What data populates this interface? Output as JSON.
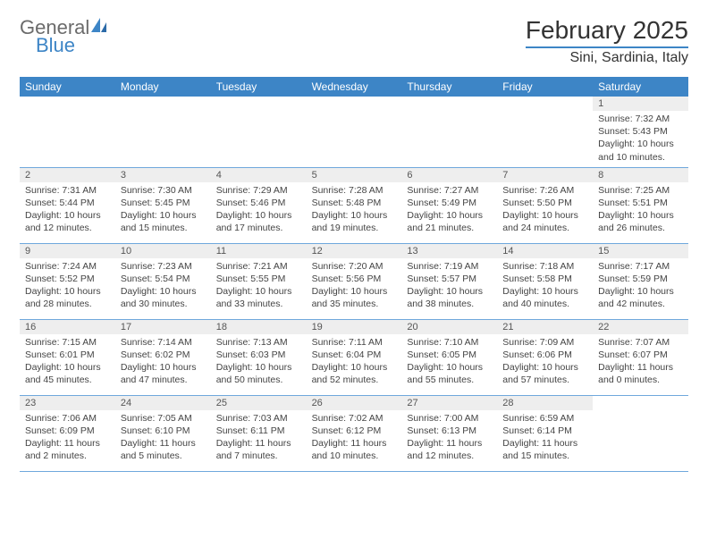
{
  "brand": {
    "word1": "General",
    "word2": "Blue"
  },
  "title": "February 2025",
  "location": "Sini, Sardinia, Italy",
  "colors": {
    "accent": "#3d85c6",
    "accent_light": "#6fa8dc",
    "header_text": "#ffffff",
    "daynum_bg": "#eeeeee",
    "body_text": "#444444",
    "logo_gray": "#6b6b6b"
  },
  "day_names": [
    "Sunday",
    "Monday",
    "Tuesday",
    "Wednesday",
    "Thursday",
    "Friday",
    "Saturday"
  ],
  "weeks": [
    [
      {
        "n": "",
        "sr": "",
        "ss": "",
        "dl": ""
      },
      {
        "n": "",
        "sr": "",
        "ss": "",
        "dl": ""
      },
      {
        "n": "",
        "sr": "",
        "ss": "",
        "dl": ""
      },
      {
        "n": "",
        "sr": "",
        "ss": "",
        "dl": ""
      },
      {
        "n": "",
        "sr": "",
        "ss": "",
        "dl": ""
      },
      {
        "n": "",
        "sr": "",
        "ss": "",
        "dl": ""
      },
      {
        "n": "1",
        "sr": "Sunrise: 7:32 AM",
        "ss": "Sunset: 5:43 PM",
        "dl": "Daylight: 10 hours and 10 minutes."
      }
    ],
    [
      {
        "n": "2",
        "sr": "Sunrise: 7:31 AM",
        "ss": "Sunset: 5:44 PM",
        "dl": "Daylight: 10 hours and 12 minutes."
      },
      {
        "n": "3",
        "sr": "Sunrise: 7:30 AM",
        "ss": "Sunset: 5:45 PM",
        "dl": "Daylight: 10 hours and 15 minutes."
      },
      {
        "n": "4",
        "sr": "Sunrise: 7:29 AM",
        "ss": "Sunset: 5:46 PM",
        "dl": "Daylight: 10 hours and 17 minutes."
      },
      {
        "n": "5",
        "sr": "Sunrise: 7:28 AM",
        "ss": "Sunset: 5:48 PM",
        "dl": "Daylight: 10 hours and 19 minutes."
      },
      {
        "n": "6",
        "sr": "Sunrise: 7:27 AM",
        "ss": "Sunset: 5:49 PM",
        "dl": "Daylight: 10 hours and 21 minutes."
      },
      {
        "n": "7",
        "sr": "Sunrise: 7:26 AM",
        "ss": "Sunset: 5:50 PM",
        "dl": "Daylight: 10 hours and 24 minutes."
      },
      {
        "n": "8",
        "sr": "Sunrise: 7:25 AM",
        "ss": "Sunset: 5:51 PM",
        "dl": "Daylight: 10 hours and 26 minutes."
      }
    ],
    [
      {
        "n": "9",
        "sr": "Sunrise: 7:24 AM",
        "ss": "Sunset: 5:52 PM",
        "dl": "Daylight: 10 hours and 28 minutes."
      },
      {
        "n": "10",
        "sr": "Sunrise: 7:23 AM",
        "ss": "Sunset: 5:54 PM",
        "dl": "Daylight: 10 hours and 30 minutes."
      },
      {
        "n": "11",
        "sr": "Sunrise: 7:21 AM",
        "ss": "Sunset: 5:55 PM",
        "dl": "Daylight: 10 hours and 33 minutes."
      },
      {
        "n": "12",
        "sr": "Sunrise: 7:20 AM",
        "ss": "Sunset: 5:56 PM",
        "dl": "Daylight: 10 hours and 35 minutes."
      },
      {
        "n": "13",
        "sr": "Sunrise: 7:19 AM",
        "ss": "Sunset: 5:57 PM",
        "dl": "Daylight: 10 hours and 38 minutes."
      },
      {
        "n": "14",
        "sr": "Sunrise: 7:18 AM",
        "ss": "Sunset: 5:58 PM",
        "dl": "Daylight: 10 hours and 40 minutes."
      },
      {
        "n": "15",
        "sr": "Sunrise: 7:17 AM",
        "ss": "Sunset: 5:59 PM",
        "dl": "Daylight: 10 hours and 42 minutes."
      }
    ],
    [
      {
        "n": "16",
        "sr": "Sunrise: 7:15 AM",
        "ss": "Sunset: 6:01 PM",
        "dl": "Daylight: 10 hours and 45 minutes."
      },
      {
        "n": "17",
        "sr": "Sunrise: 7:14 AM",
        "ss": "Sunset: 6:02 PM",
        "dl": "Daylight: 10 hours and 47 minutes."
      },
      {
        "n": "18",
        "sr": "Sunrise: 7:13 AM",
        "ss": "Sunset: 6:03 PM",
        "dl": "Daylight: 10 hours and 50 minutes."
      },
      {
        "n": "19",
        "sr": "Sunrise: 7:11 AM",
        "ss": "Sunset: 6:04 PM",
        "dl": "Daylight: 10 hours and 52 minutes."
      },
      {
        "n": "20",
        "sr": "Sunrise: 7:10 AM",
        "ss": "Sunset: 6:05 PM",
        "dl": "Daylight: 10 hours and 55 minutes."
      },
      {
        "n": "21",
        "sr": "Sunrise: 7:09 AM",
        "ss": "Sunset: 6:06 PM",
        "dl": "Daylight: 10 hours and 57 minutes."
      },
      {
        "n": "22",
        "sr": "Sunrise: 7:07 AM",
        "ss": "Sunset: 6:07 PM",
        "dl": "Daylight: 11 hours and 0 minutes."
      }
    ],
    [
      {
        "n": "23",
        "sr": "Sunrise: 7:06 AM",
        "ss": "Sunset: 6:09 PM",
        "dl": "Daylight: 11 hours and 2 minutes."
      },
      {
        "n": "24",
        "sr": "Sunrise: 7:05 AM",
        "ss": "Sunset: 6:10 PM",
        "dl": "Daylight: 11 hours and 5 minutes."
      },
      {
        "n": "25",
        "sr": "Sunrise: 7:03 AM",
        "ss": "Sunset: 6:11 PM",
        "dl": "Daylight: 11 hours and 7 minutes."
      },
      {
        "n": "26",
        "sr": "Sunrise: 7:02 AM",
        "ss": "Sunset: 6:12 PM",
        "dl": "Daylight: 11 hours and 10 minutes."
      },
      {
        "n": "27",
        "sr": "Sunrise: 7:00 AM",
        "ss": "Sunset: 6:13 PM",
        "dl": "Daylight: 11 hours and 12 minutes."
      },
      {
        "n": "28",
        "sr": "Sunrise: 6:59 AM",
        "ss": "Sunset: 6:14 PM",
        "dl": "Daylight: 11 hours and 15 minutes."
      },
      {
        "n": "",
        "sr": "",
        "ss": "",
        "dl": ""
      }
    ]
  ]
}
